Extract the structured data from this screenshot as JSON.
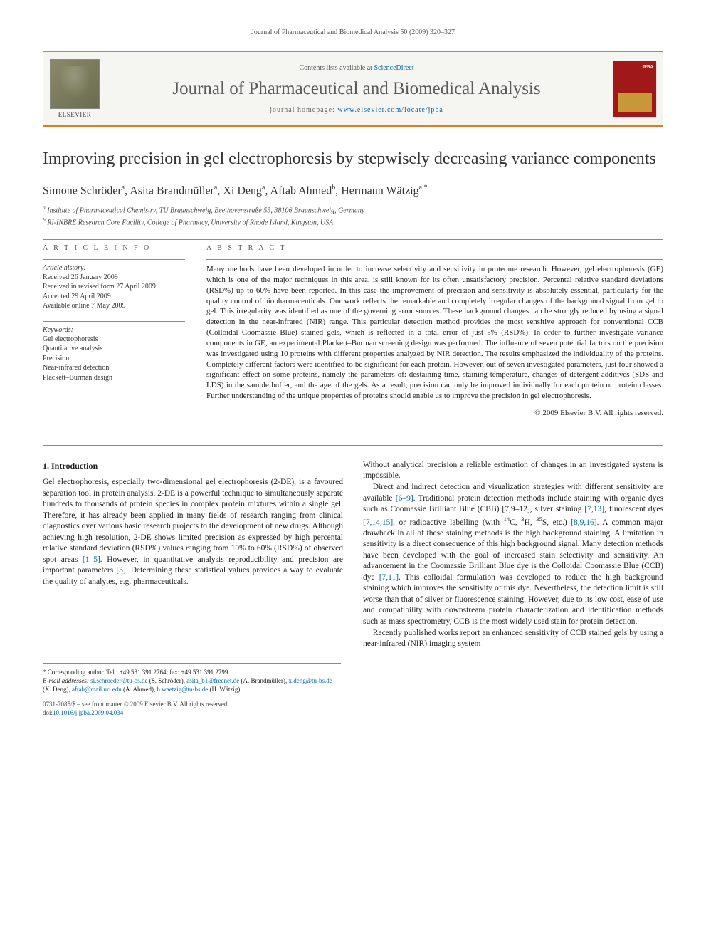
{
  "colors": {
    "accent_bar": "#e87722",
    "link": "#0066aa",
    "cover_bg": "#a01818",
    "cover_panel": "#c89838",
    "masthead_bg": "#f5f5f2",
    "text": "#222222",
    "muted": "#555555"
  },
  "running_header": "Journal of Pharmaceutical and Biomedical Analysis 50 (2009) 320–327",
  "masthead": {
    "publisher_label": "ELSEVIER",
    "contents_prefix": "Contents lists available at ",
    "contents_link": "ScienceDirect",
    "journal_title": "Journal of Pharmaceutical and Biomedical Analysis",
    "homepage_prefix": "journal homepage: ",
    "homepage_url": "www.elsevier.com/locate/jpba",
    "cover_text": "JPBA"
  },
  "article": {
    "title": "Improving precision in gel electrophoresis by stepwisely decreasing variance components",
    "authors_html": "Simone Schröder<sup>a</sup>, Asita Brandmüller<sup>a</sup>, Xi Deng<sup>a</sup>, Aftab Ahmed<sup>b</sup>, Hermann Wätzig<sup>a,*</sup>",
    "affiliations": [
      "a Institute of Pharmaceutical Chemistry, TU Braunschweig, Beethovenstraße 55, 38106 Braunschweig, Germany",
      "b RI-INBRE Research Core Facility, College of Pharmacy, University of Rhode Island, Kingston, USA"
    ]
  },
  "article_info": {
    "heading": "a r t i c l e   i n f o",
    "history_label": "Article history:",
    "history": [
      "Received 26 January 2009",
      "Received in revised form 27 April 2009",
      "Accepted 29 April 2009",
      "Available online 7 May 2009"
    ],
    "keywords_label": "Keywords:",
    "keywords": [
      "Gel electrophoresis",
      "Quantitative analysis",
      "Precision",
      "Near-infrared detection",
      "Plackett–Burman design"
    ]
  },
  "abstract": {
    "heading": "a b s t r a c t",
    "text": "Many methods have been developed in order to increase selectivity and sensitivity in proteome research. However, gel electrophoresis (GE) which is one of the major techniques in this area, is still known for its often unsatisfactory precision. Percental relative standard deviations (RSD%) up to 60% have been reported. In this case the improvement of precision and sensitivity is absolutely essential, particularly for the quality control of biopharmaceuticals. Our work reflects the remarkable and completely irregular changes of the background signal from gel to gel. This irregularity was identified as one of the governing error sources. These background changes can be strongly reduced by using a signal detection in the near-infrared (NIR) range. This particular detection method provides the most sensitive approach for conventional CCB (Colloidal Coomassie Blue) stained gels, which is reflected in a total error of just 5% (RSD%). In order to further investigate variance components in GE, an experimental Plackett–Burman screening design was performed. The influence of seven potential factors on the precision was investigated using 10 proteins with different properties analyzed by NIR detection. The results emphasized the individuality of the proteins. Completely different factors were identified to be significant for each protein. However, out of seven investigated parameters, just four showed a significant effect on some proteins, namely the parameters of: destaining time, staining temperature, changes of detergent additives (SDS and LDS) in the sample buffer, and the age of the gels. As a result, precision can only be improved individually for each protein or protein classes. Further understanding of the unique properties of proteins should enable us to improve the precision in gel electrophoresis.",
    "copyright": "© 2009 Elsevier B.V. All rights reserved."
  },
  "sections": {
    "intro_heading": "1.  Introduction",
    "intro_paras": [
      "Gel electrophoresis, especially two-dimensional gel electrophoresis (2-DE), is a favoured separation tool in protein analysis. 2-DE is a powerful technique to simultaneously separate hundreds to thousands of protein species in complex protein mixtures within a single gel. Therefore, it has already been applied in many fields of research ranging from clinical diagnostics over various basic research projects to the development of new drugs. Although achieving high resolution, 2-DE shows limited precision as expressed by high percental relative standard deviation (RSD%) values ranging from 10% to 60% (RSD%) of observed spot areas [1–5]. However, in quantitative analysis reproducibility and precision are important parameters [3]. Determining these statistical values provides a way to evaluate the quality of analytes, e.g. pharmaceuticals.",
      "Without analytical precision a reliable estimation of changes in an investigated system is impossible.",
      "Direct and indirect detection and visualization strategies with different sensitivity are available [6–9]. Traditional protein detection methods include staining with organic dyes such as Coomassie Brilliant Blue (CBB) [7,9–12], silver staining [7,13], fluorescent dyes [7,14,15], or radioactive labelling (with 14C, 3H, 35S, etc.) [8,9,16]. A common major drawback in all of these staining methods is the high background staining. A limitation in sensitivity is a direct consequence of this high background signal. Many detection methods have been developed with the goal of increased stain selectivity and sensitivity. An advancement in the Coomassie Brilliant Blue dye is the Colloidal Coomassie Blue (CCB) dye [7,11]. This colloidal formulation was developed to reduce the high background staining which improves the sensitivity of this dye. Nevertheless, the detection limit is still worse than that of silver or fluorescence staining. However, due to its low cost, ease of use and compatibility with downstream protein characterization and identification methods such as mass spectrometry, CCB is the most widely used stain for protein detection.",
      "Recently published works report an enhanced sensitivity of CCB stained gels by using a near-infrared (NIR) imaging system"
    ],
    "intro_refs": [
      "[1–5]",
      "[3]",
      "[6–9]",
      "[7,9–12]",
      "[7,13]",
      "[7,14,15]",
      "[8,9,16]",
      "[7,11]"
    ]
  },
  "footnotes": {
    "corresponding": "* Corresponding author. Tel.: +49 531 391 2764; fax: +49 531 391 2799.",
    "emails_label": "E-mail addresses:",
    "emails": [
      {
        "addr": "si.schroeder@tu-bs.de",
        "who": "(S. Schröder)"
      },
      {
        "addr": "asita_b1@freenet.de",
        "who": "(A. Brandmüller)"
      },
      {
        "addr": "x.deng@tu-bs.de",
        "who": "(X. Deng)"
      },
      {
        "addr": "aftab@mail.uri.edu",
        "who": "(A. Ahmed)"
      },
      {
        "addr": "h.waetzig@tu-bs.de",
        "who": "(H. Wätzig)"
      }
    ]
  },
  "bottom": {
    "issn_line": "0731-7085/$ – see front matter © 2009 Elsevier B.V. All rights reserved.",
    "doi_prefix": "doi:",
    "doi": "10.1016/j.jpba.2009.04.034"
  }
}
